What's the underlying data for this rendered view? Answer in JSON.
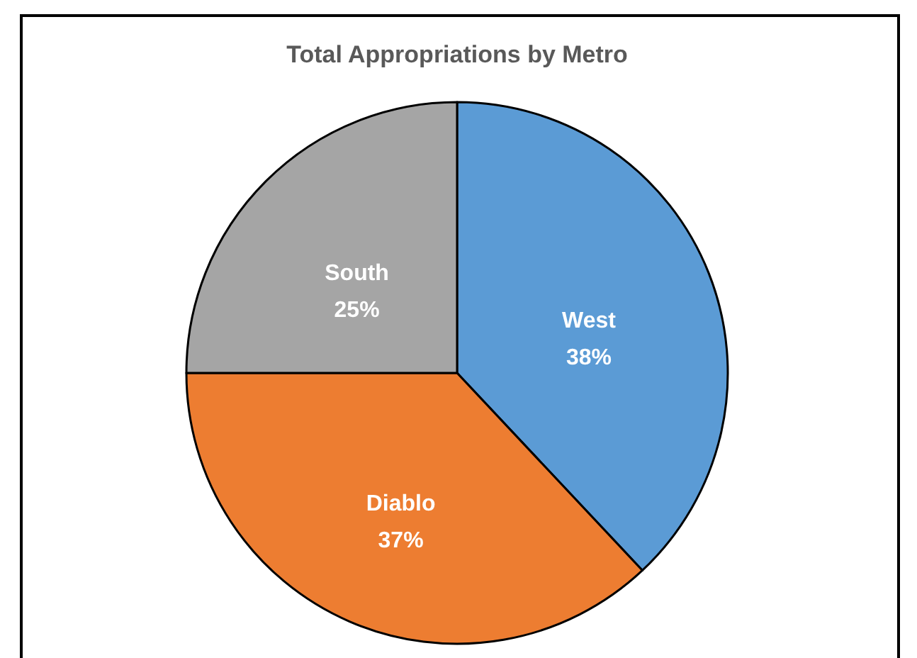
{
  "chart_data": {
    "type": "pie",
    "title": "Total Appropriations  by Metro",
    "categories": [
      "West",
      "Diablo",
      "South"
    ],
    "values": [
      38,
      37,
      25
    ],
    "colors": [
      "#5b9bd5",
      "#ed7d31",
      "#a5a5a5"
    ],
    "value_labels": [
      "38%",
      "37%",
      "25%"
    ],
    "legend": false
  }
}
